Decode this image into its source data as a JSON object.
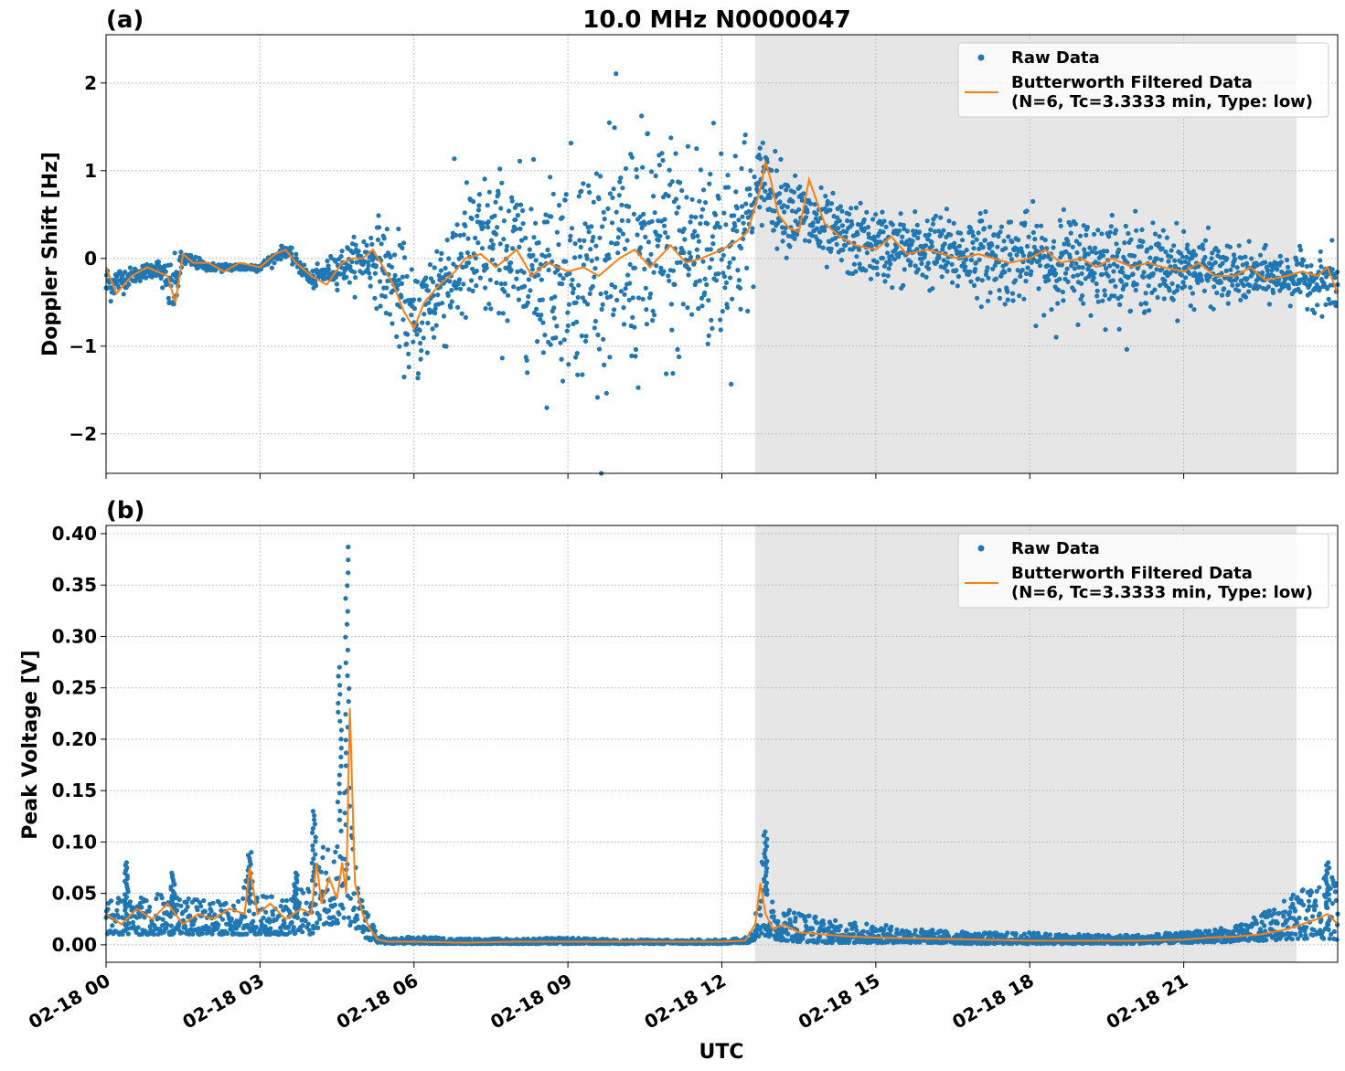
{
  "figure": {
    "title": "10.0 MHz N0000047",
    "xlabel": "UTC",
    "night_shade_color": "#e6e6e6",
    "raw_color": "#1f77b4",
    "filtered_color": "#ff7f0e"
  },
  "chart_data": [
    {
      "type": "scatter",
      "panel_label": "(a)",
      "title": "10.0 MHz N0000047",
      "ylabel": "Doppler Shift [Hz]",
      "xlabel": "",
      "x_unit": "hours UTC on 02-18",
      "xlim": [
        0,
        24
      ],
      "ylim": [
        -2.45,
        2.55
      ],
      "yticks": [
        -2,
        -1,
        0,
        1,
        2
      ],
      "ytick_labels": [
        "−2",
        "−1",
        "0",
        "1",
        "2"
      ],
      "xticks": [
        0,
        3,
        6,
        9,
        12,
        15,
        18,
        21
      ],
      "grid": true,
      "shaded_interval": [
        12.65,
        23.2
      ],
      "legend": {
        "placement": "top-right",
        "entries": [
          {
            "label": "Raw Data",
            "marker": "dot",
            "color": "#1f77b4"
          },
          {
            "label": "Butterworth Filtered Data",
            "label2": "(N=6, Tc=3.3333 min, Type: low)",
            "marker": "line",
            "color": "#ff7f0e"
          }
        ]
      },
      "series": [
        {
          "name": "Raw Data",
          "kind": "points",
          "color": "#1f77b4",
          "x": [
            0.0,
            0.5,
            1.0,
            1.3,
            1.5,
            2.0,
            2.5,
            3.0,
            3.5,
            4.0,
            4.5,
            5.0,
            5.3,
            5.7,
            6.0,
            6.5,
            7.0,
            7.5,
            8.0,
            8.5,
            9.0,
            9.5,
            10.0,
            10.5,
            11.0,
            11.5,
            12.0,
            12.5,
            12.65,
            12.8,
            13.0,
            13.5,
            14.0,
            14.5,
            15.0,
            15.5,
            16.0,
            16.5,
            17.0,
            17.5,
            18.0,
            18.5,
            19.0,
            19.5,
            20.0,
            20.5,
            21.0,
            21.5,
            22.0,
            22.5,
            23.0,
            23.5,
            24.0
          ],
          "center": [
            -0.3,
            -0.2,
            -0.1,
            -0.4,
            0.0,
            -0.1,
            -0.1,
            -0.1,
            0.1,
            -0.25,
            -0.1,
            0.0,
            0.0,
            -0.4,
            -0.8,
            -0.3,
            0.0,
            0.1,
            0.0,
            -0.15,
            -0.1,
            -0.05,
            0.0,
            0.05,
            0.1,
            0.1,
            0.2,
            0.4,
            0.6,
            1.0,
            0.7,
            0.5,
            0.3,
            0.2,
            0.15,
            0.1,
            0.1,
            0.05,
            0.05,
            0.0,
            0.0,
            -0.05,
            -0.05,
            -0.05,
            -0.1,
            -0.1,
            -0.1,
            -0.15,
            -0.2,
            -0.2,
            -0.2,
            -0.25,
            -0.3
          ],
          "spread": [
            0.25,
            0.1,
            0.1,
            0.4,
            0.1,
            0.05,
            0.05,
            0.05,
            0.08,
            0.1,
            0.2,
            0.3,
            0.5,
            0.7,
            0.7,
            0.8,
            0.9,
            1.0,
            1.0,
            1.2,
            1.3,
            1.4,
            1.5,
            1.5,
            1.5,
            1.5,
            1.4,
            1.2,
            0.5,
            0.6,
            0.5,
            0.5,
            0.45,
            0.45,
            0.45,
            0.45,
            0.45,
            0.5,
            0.5,
            0.55,
            0.55,
            0.6,
            0.6,
            0.6,
            0.55,
            0.5,
            0.45,
            0.4,
            0.35,
            0.3,
            0.3,
            0.3,
            0.4
          ]
        },
        {
          "name": "Butterworth Filtered Data",
          "kind": "line",
          "color": "#ff7f0e",
          "x": [
            0.0,
            0.2,
            0.5,
            0.8,
            1.0,
            1.2,
            1.35,
            1.5,
            1.7,
            2.0,
            2.3,
            2.6,
            3.0,
            3.3,
            3.5,
            3.7,
            4.0,
            4.3,
            4.6,
            4.8,
            5.0,
            5.2,
            5.4,
            5.6,
            5.8,
            6.0,
            6.2,
            6.5,
            6.8,
            7.0,
            7.3,
            7.6,
            8.0,
            8.3,
            8.6,
            9.0,
            9.3,
            9.6,
            10.0,
            10.3,
            10.6,
            11.0,
            11.3,
            11.6,
            12.0,
            12.3,
            12.5,
            12.65,
            12.75,
            12.85,
            12.95,
            13.1,
            13.3,
            13.5,
            13.7,
            14.0,
            14.3,
            14.6,
            15.0,
            15.3,
            15.6,
            16.0,
            16.3,
            16.6,
            17.0,
            17.3,
            17.6,
            18.0,
            18.3,
            18.6,
            19.0,
            19.3,
            19.6,
            20.0,
            20.3,
            20.6,
            21.0,
            21.3,
            21.6,
            22.0,
            22.3,
            22.6,
            23.0,
            23.3,
            23.6,
            23.8,
            24.0
          ],
          "y": [
            -0.1,
            -0.4,
            -0.2,
            -0.1,
            -0.15,
            -0.2,
            -0.5,
            0.05,
            -0.05,
            -0.05,
            -0.15,
            -0.05,
            -0.1,
            0.05,
            0.1,
            -0.05,
            -0.2,
            -0.3,
            -0.05,
            0.0,
            0.0,
            0.1,
            -0.1,
            -0.3,
            -0.6,
            -0.8,
            -0.5,
            -0.3,
            -0.15,
            0.0,
            0.05,
            -0.1,
            0.1,
            -0.2,
            -0.05,
            -0.15,
            -0.1,
            -0.2,
            0.0,
            0.1,
            -0.1,
            0.15,
            -0.05,
            0.0,
            0.1,
            0.2,
            0.3,
            0.6,
            0.8,
            1.1,
            0.9,
            0.5,
            0.35,
            0.3,
            0.9,
            0.4,
            0.25,
            0.15,
            0.1,
            0.25,
            0.05,
            0.1,
            0.05,
            0.0,
            0.05,
            0.0,
            -0.05,
            0.0,
            0.1,
            -0.05,
            0.0,
            -0.1,
            0.0,
            -0.1,
            -0.05,
            -0.1,
            -0.15,
            -0.05,
            -0.2,
            -0.2,
            -0.1,
            -0.25,
            -0.2,
            -0.15,
            -0.2,
            -0.1,
            -0.4
          ]
        }
      ]
    },
    {
      "type": "scatter",
      "panel_label": "(b)",
      "title": "",
      "ylabel": "Peak Voltage [V]",
      "xlabel": "UTC",
      "x_unit": "hours UTC on 02-18",
      "xlim": [
        0,
        24
      ],
      "ylim": [
        -0.017,
        0.408
      ],
      "yticks": [
        0.0,
        0.05,
        0.1,
        0.15,
        0.2,
        0.25,
        0.3,
        0.35,
        0.4
      ],
      "ytick_labels": [
        "0.00",
        "0.05",
        "0.10",
        "0.15",
        "0.20",
        "0.25",
        "0.30",
        "0.35",
        "0.40"
      ],
      "xticks": [
        0,
        3,
        6,
        9,
        12,
        15,
        18,
        21
      ],
      "xtick_labels": [
        "02-18 00",
        "02-18 03",
        "02-18 06",
        "02-18 09",
        "02-18 12",
        "02-18 15",
        "02-18 18",
        "02-18 21"
      ],
      "grid": true,
      "shaded_interval": [
        12.65,
        23.2
      ],
      "legend": {
        "placement": "top-right",
        "entries": [
          {
            "label": "Raw Data",
            "marker": "dot",
            "color": "#1f77b4"
          },
          {
            "label": "Butterworth Filtered Data",
            "label2": "(N=6, Tc=3.3333 min, Type: low)",
            "marker": "line",
            "color": "#ff7f0e"
          }
        ]
      },
      "series": [
        {
          "name": "Raw Data",
          "kind": "band_points",
          "color": "#1f77b4",
          "x": [
            0.0,
            0.5,
            1.0,
            1.5,
            2.0,
            2.5,
            2.8,
            3.0,
            3.5,
            4.0,
            4.2,
            4.5,
            4.7,
            4.9,
            5.1,
            5.3,
            5.5,
            6.0,
            7.0,
            8.0,
            9.0,
            10.0,
            11.0,
            12.0,
            12.5,
            12.65,
            12.8,
            13.0,
            13.5,
            14.0,
            15.0,
            16.0,
            17.0,
            18.0,
            19.0,
            20.0,
            21.0,
            22.0,
            22.5,
            23.0,
            23.5,
            24.0
          ],
          "low": [
            0.01,
            0.01,
            0.01,
            0.01,
            0.01,
            0.01,
            0.01,
            0.01,
            0.01,
            0.01,
            0.02,
            0.02,
            0.02,
            0.01,
            0.005,
            0.002,
            0.001,
            0.001,
            0.001,
            0.001,
            0.001,
            0.001,
            0.001,
            0.001,
            0.002,
            0.005,
            0.01,
            0.005,
            0.003,
            0.002,
            0.002,
            0.002,
            0.001,
            0.001,
            0.001,
            0.001,
            0.002,
            0.003,
            0.004,
            0.005,
            0.006,
            0.005
          ],
          "high": [
            0.05,
            0.045,
            0.05,
            0.045,
            0.045,
            0.04,
            0.07,
            0.05,
            0.045,
            0.06,
            0.1,
            0.12,
            0.18,
            0.06,
            0.03,
            0.01,
            0.006,
            0.008,
            0.006,
            0.006,
            0.007,
            0.005,
            0.005,
            0.005,
            0.008,
            0.03,
            0.1,
            0.04,
            0.035,
            0.025,
            0.02,
            0.015,
            0.012,
            0.012,
            0.01,
            0.01,
            0.012,
            0.018,
            0.03,
            0.045,
            0.06,
            0.07
          ],
          "spikes": [
            [
              0.4,
              0.08
            ],
            [
              1.3,
              0.07
            ],
            [
              2.8,
              0.09
            ],
            [
              3.7,
              0.07
            ],
            [
              4.05,
              0.13
            ],
            [
              4.55,
              0.27
            ],
            [
              4.7,
              0.387
            ],
            [
              12.85,
              0.11
            ],
            [
              23.8,
              0.08
            ]
          ]
        },
        {
          "name": "Butterworth Filtered Data",
          "kind": "line",
          "color": "#ff7f0e",
          "x": [
            0.0,
            0.3,
            0.6,
            0.9,
            1.2,
            1.5,
            1.8,
            2.1,
            2.4,
            2.7,
            2.8,
            2.95,
            3.2,
            3.5,
            3.8,
            4.0,
            4.1,
            4.2,
            4.35,
            4.5,
            4.6,
            4.68,
            4.75,
            4.85,
            5.0,
            5.15,
            5.3,
            5.5,
            6.0,
            7.0,
            8.0,
            9.0,
            10.0,
            11.0,
            12.0,
            12.45,
            12.65,
            12.75,
            12.85,
            13.0,
            13.2,
            13.5,
            14.0,
            14.5,
            15.0,
            16.0,
            17.0,
            18.0,
            19.0,
            20.0,
            21.0,
            21.5,
            22.0,
            22.5,
            23.0,
            23.3,
            23.6,
            23.8,
            24.0
          ],
          "y": [
            0.03,
            0.02,
            0.035,
            0.025,
            0.04,
            0.02,
            0.03,
            0.025,
            0.035,
            0.03,
            0.075,
            0.03,
            0.04,
            0.025,
            0.035,
            0.03,
            0.08,
            0.04,
            0.065,
            0.045,
            0.08,
            0.05,
            0.23,
            0.06,
            0.03,
            0.015,
            0.005,
            0.003,
            0.003,
            0.002,
            0.003,
            0.003,
            0.003,
            0.003,
            0.003,
            0.004,
            0.02,
            0.06,
            0.03,
            0.015,
            0.02,
            0.012,
            0.01,
            0.008,
            0.007,
            0.006,
            0.005,
            0.004,
            0.004,
            0.004,
            0.005,
            0.007,
            0.008,
            0.01,
            0.015,
            0.02,
            0.025,
            0.03,
            0.02
          ]
        }
      ]
    }
  ]
}
